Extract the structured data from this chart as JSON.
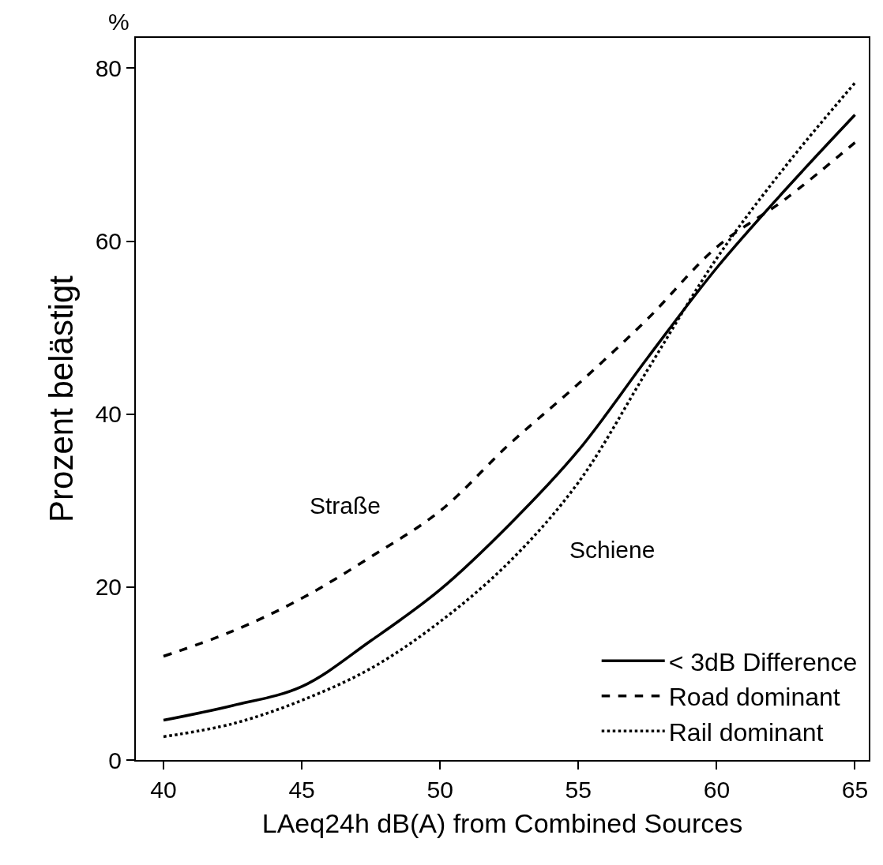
{
  "chart_data": {
    "type": "line",
    "xlabel": "LAeq24h dB(A) from Combined Sources",
    "ylabel": "Prozent belästigt",
    "x": [
      40,
      42.5,
      45,
      47.5,
      50,
      52.5,
      55,
      57.5,
      60,
      62.5,
      65
    ],
    "series": [
      {
        "name": "< 3dB Difference",
        "color": "#000000",
        "line_style": "solid",
        "values": [
          4.6,
          6.3,
          8.5,
          13.8,
          19.7,
          27.2,
          35.8,
          46.5,
          56.9,
          66.0,
          74.6
        ]
      },
      {
        "name": "Road dominant",
        "color": "#000000",
        "line_style": "dashed",
        "values": [
          12.0,
          14.9,
          18.7,
          23.5,
          28.8,
          36.5,
          43.5,
          51.0,
          59.3,
          64.9,
          71.4
        ]
      },
      {
        "name": "Rail dominant",
        "color": "#000000",
        "line_style": "dotted",
        "values": [
          2.7,
          4.2,
          6.9,
          10.6,
          16.0,
          22.9,
          32.1,
          45.1,
          58.0,
          68.7,
          78.3
        ]
      }
    ],
    "xlim": [
      39,
      65.5
    ],
    "xticks": [
      40,
      45,
      50,
      55,
      60,
      65
    ],
    "ylim": [
      0,
      83.5
    ],
    "yticks": [
      0,
      20,
      40,
      60,
      80
    ],
    "annotations": [
      "%",
      "Straße",
      "Schiene"
    ],
    "legend": "bottom right",
    "marker": "none"
  }
}
